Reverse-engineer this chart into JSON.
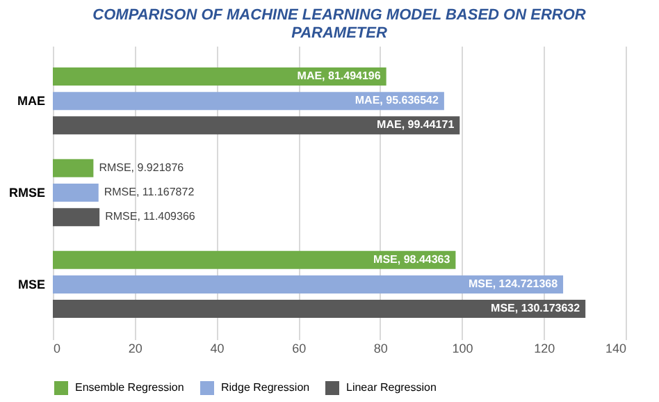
{
  "chart_data": {
    "type": "bar",
    "orientation": "horizontal",
    "title": [
      "COMPARISON OF MACHINE LEARNING MODEL BASED ON ERROR",
      "PARAMETER"
    ],
    "categories": [
      "MAE",
      "RMSE",
      "MSE"
    ],
    "series": [
      {
        "name": "Ensemble Regression",
        "color": "#70ad47",
        "values": [
          81.494196,
          9.921876,
          98.44363
        ],
        "value_labels": [
          "MAE, 81.494196",
          "RMSE, 9.921876",
          "MSE, 98.44363"
        ]
      },
      {
        "name": "Ridge Regression",
        "color": "#8faadc",
        "values": [
          95.636542,
          11.167872,
          124.721368
        ],
        "value_labels": [
          "MAE, 95.636542",
          "RMSE, 11.167872",
          "MSE, 124.721368"
        ]
      },
      {
        "name": "Linear Regression",
        "color": "#595959",
        "values": [
          99.44171,
          11.409366,
          130.173632
        ],
        "value_labels": [
          "MAE, 99.44171",
          "RMSE, 11.409366",
          "MSE, 130.173632"
        ]
      }
    ],
    "xlim": [
      0,
      140
    ],
    "xticks": [
      0,
      20,
      40,
      60,
      80,
      100,
      120,
      140
    ],
    "grid": "x",
    "legend": "bottom"
  }
}
